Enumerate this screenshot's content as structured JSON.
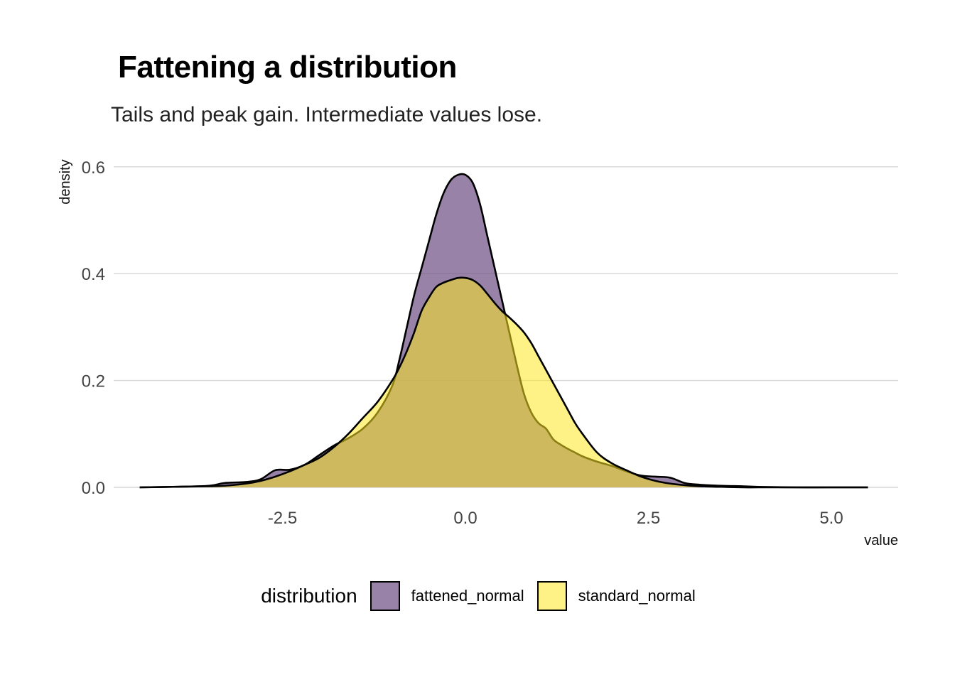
{
  "chart_data": {
    "type": "area",
    "title": "Fattening a distribution",
    "subtitle": "Tails and peak gain. Intermediate values lose.",
    "xlabel": "value",
    "ylabel": "density",
    "xlim": [
      -4.5,
      5.5
    ],
    "ylim": [
      0,
      0.6
    ],
    "x_ticks": [
      -2.5,
      0.0,
      2.5,
      5.0
    ],
    "x_tick_labels": [
      "-2.5",
      "0.0",
      "2.5",
      "5.0"
    ],
    "y_ticks": [
      0.0,
      0.2,
      0.4,
      0.6
    ],
    "y_tick_labels": [
      "0.0",
      "0.2",
      "0.4",
      "0.6"
    ],
    "grid": "horizontal-major",
    "legend_title": "distribution",
    "legend_position": "bottom",
    "series": [
      {
        "name": "fattened_normal",
        "color": "#6c4d82",
        "opacity": 0.7,
        "x": [
          -4.45,
          -4.0,
          -3.5,
          -3.3,
          -3.0,
          -2.8,
          -2.6,
          -2.4,
          -2.2,
          -2.0,
          -1.8,
          -1.6,
          -1.4,
          -1.2,
          -1.0,
          -0.9,
          -0.8,
          -0.7,
          -0.6,
          -0.5,
          -0.4,
          -0.3,
          -0.2,
          -0.1,
          0.0,
          0.1,
          0.2,
          0.3,
          0.4,
          0.5,
          0.6,
          0.7,
          0.8,
          0.9,
          1.0,
          1.1,
          1.2,
          1.3,
          1.4,
          1.5,
          1.6,
          1.8,
          2.0,
          2.2,
          2.4,
          2.6,
          2.8,
          3.0,
          3.2,
          3.5,
          3.8,
          4.0,
          4.5,
          5.0,
          5.5
        ],
        "y": [
          0.0,
          0.001,
          0.003,
          0.008,
          0.01,
          0.015,
          0.032,
          0.033,
          0.042,
          0.06,
          0.078,
          0.092,
          0.11,
          0.14,
          0.19,
          0.24,
          0.3,
          0.36,
          0.41,
          0.46,
          0.51,
          0.55,
          0.575,
          0.585,
          0.585,
          0.57,
          0.53,
          0.47,
          0.41,
          0.35,
          0.29,
          0.23,
          0.175,
          0.14,
          0.12,
          0.11,
          0.09,
          0.08,
          0.072,
          0.065,
          0.058,
          0.048,
          0.04,
          0.03,
          0.022,
          0.02,
          0.018,
          0.008,
          0.005,
          0.003,
          0.002,
          0.001,
          0.0,
          0.0,
          0.0
        ]
      },
      {
        "name": "standard_normal",
        "color": "#fde725",
        "opacity": 0.55,
        "x": [
          -4.45,
          -4.0,
          -3.5,
          -3.3,
          -3.0,
          -2.8,
          -2.6,
          -2.4,
          -2.2,
          -2.0,
          -1.8,
          -1.6,
          -1.4,
          -1.2,
          -1.0,
          -0.9,
          -0.8,
          -0.7,
          -0.6,
          -0.5,
          -0.4,
          -0.3,
          -0.2,
          -0.1,
          0.0,
          0.1,
          0.2,
          0.3,
          0.4,
          0.5,
          0.6,
          0.7,
          0.8,
          0.9,
          1.0,
          1.1,
          1.2,
          1.3,
          1.4,
          1.5,
          1.6,
          1.8,
          2.0,
          2.2,
          2.4,
          2.6,
          2.8,
          3.0,
          3.2,
          3.5,
          3.8,
          4.0,
          4.5,
          5.0,
          5.5
        ],
        "y": [
          0.0,
          0.001,
          0.002,
          0.003,
          0.007,
          0.012,
          0.02,
          0.03,
          0.042,
          0.055,
          0.075,
          0.1,
          0.13,
          0.16,
          0.2,
          0.225,
          0.255,
          0.29,
          0.33,
          0.355,
          0.375,
          0.383,
          0.388,
          0.392,
          0.392,
          0.388,
          0.378,
          0.362,
          0.345,
          0.33,
          0.318,
          0.305,
          0.29,
          0.27,
          0.245,
          0.22,
          0.195,
          0.17,
          0.145,
          0.12,
          0.1,
          0.065,
          0.045,
          0.032,
          0.02,
          0.012,
          0.007,
          0.004,
          0.002,
          0.001,
          0.0,
          0.0,
          0.0,
          0.0,
          0.0
        ]
      }
    ]
  }
}
